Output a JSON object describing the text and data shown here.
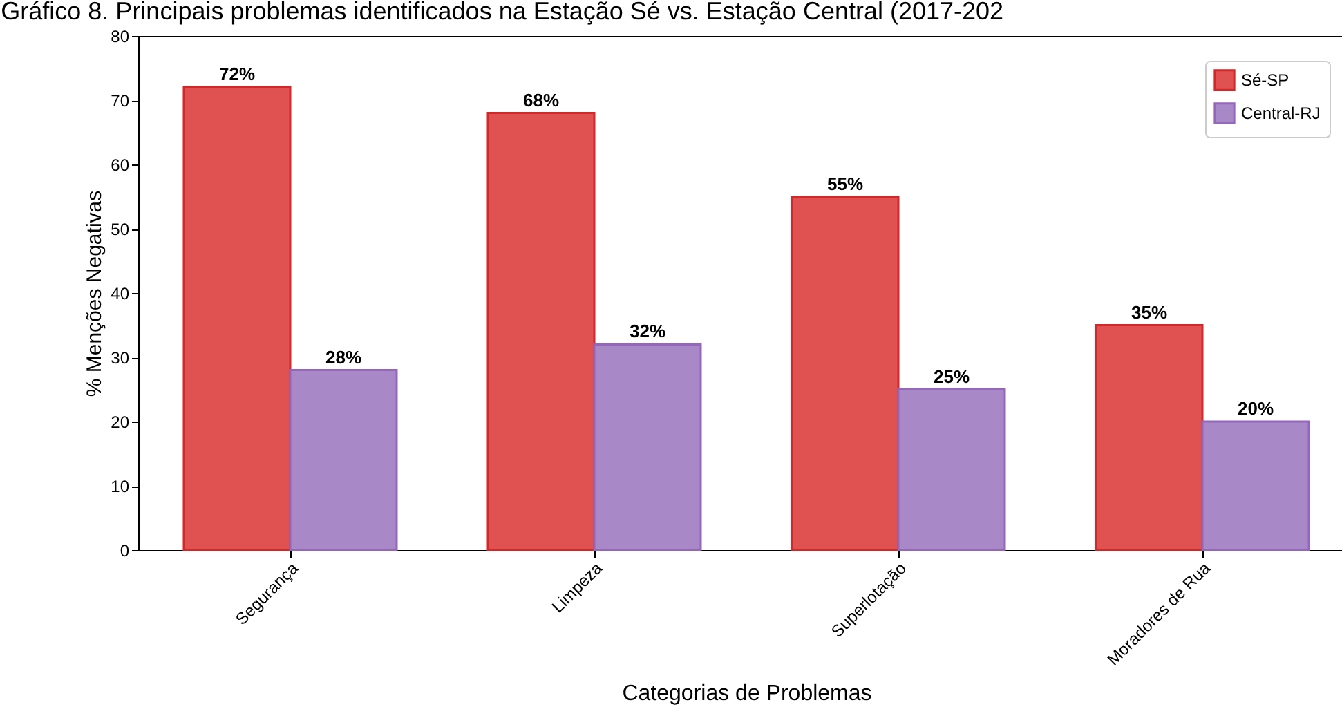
{
  "chart_data": {
    "type": "bar",
    "title": "Gráfico 8. Principais problemas identificados na Estação Sé vs. Estação Central (2017-202",
    "xlabel": "Categorias de Problemas",
    "ylabel": "% Menções Negativas",
    "categories": [
      "Segurança",
      "Limpeza",
      "Superlotação",
      "Moradores de Rua"
    ],
    "series": [
      {
        "name": "Sé-SP",
        "color": "#e05252",
        "values": [
          72,
          68,
          55,
          35
        ],
        "value_labels": [
          "72%",
          "68%",
          "55%",
          "35%"
        ]
      },
      {
        "name": "Central-RJ",
        "color": "#a988c8",
        "values": [
          28,
          32,
          25,
          20
        ],
        "value_labels": [
          "28%",
          "32%",
          "25%",
          "20%"
        ]
      }
    ],
    "ylim": [
      0,
      80
    ],
    "yticks": [
      0,
      10,
      20,
      30,
      40,
      50,
      60,
      70,
      80
    ],
    "grid": false,
    "legend": "top right"
  }
}
